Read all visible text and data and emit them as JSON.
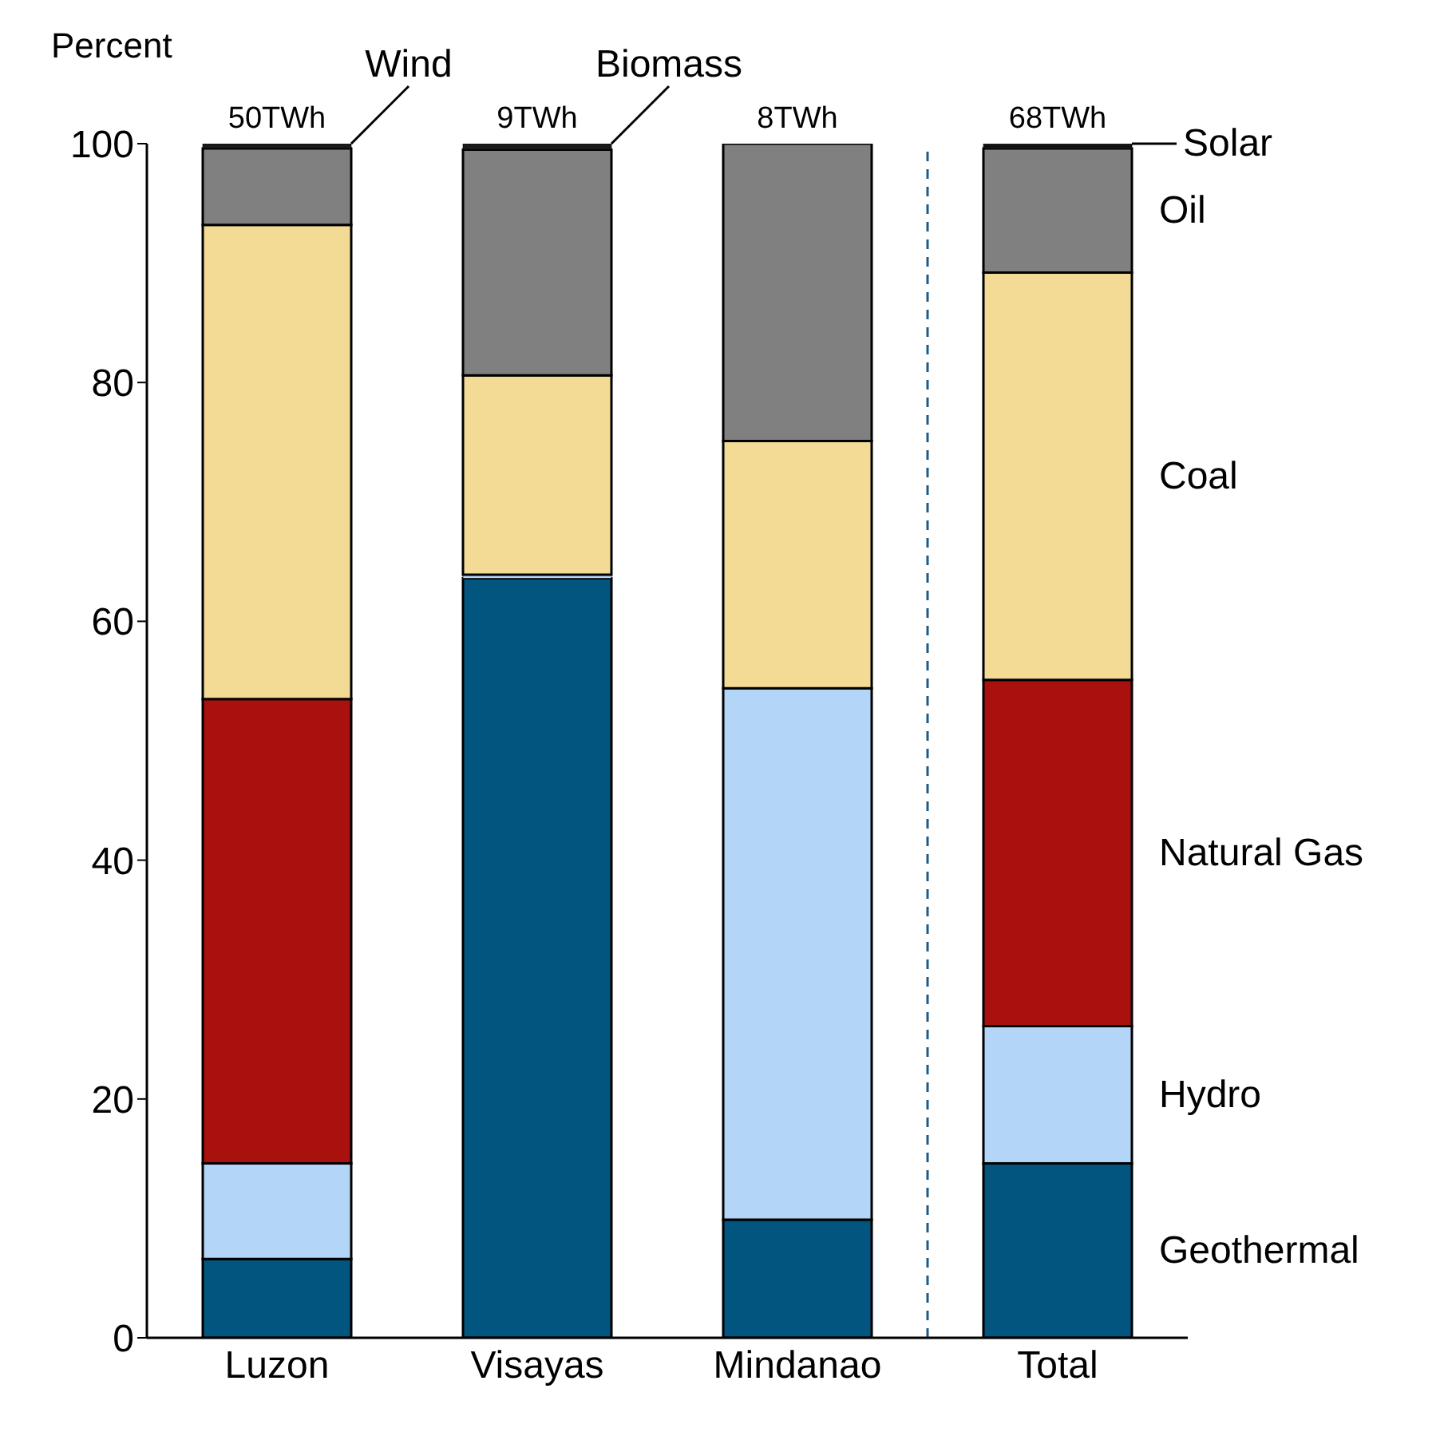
{
  "chart_data": {
    "type": "bar",
    "stacked": true,
    "ylabel": "Percent",
    "categories": [
      "Luzon",
      "Visayas",
      "Mindanao",
      "Total"
    ],
    "series": [
      {
        "name": "Geothermal",
        "color": "#02557f",
        "values": [
          6.6,
          63.6,
          9.9,
          14.6
        ]
      },
      {
        "name": "Hydro",
        "color": "#b3d5f8",
        "values": [
          8.0,
          0.3,
          44.5,
          11.5
        ]
      },
      {
        "name": "Natural Gas",
        "color": "#a8110e",
        "values": [
          38.9,
          0,
          0,
          29.0
        ]
      },
      {
        "name": "Coal",
        "color": "#f3db95",
        "values": [
          39.7,
          16.7,
          20.7,
          34.1
        ]
      },
      {
        "name": "Oil",
        "color": "#808080",
        "values": [
          6.4,
          18.9,
          24.9,
          10.4
        ]
      },
      {
        "name": "Biomass",
        "color": "#1a1a1a",
        "values": [
          null,
          0.5,
          null,
          0.2
        ]
      },
      {
        "name": "Wind",
        "color": "#1a1a1a",
        "values": [
          0.4,
          null,
          null,
          null
        ]
      },
      {
        "name": "Solar",
        "color": "#1a1a1a",
        "values": [
          null,
          null,
          null,
          0.2
        ]
      }
    ],
    "annotations": [
      {
        "text": "50TWh",
        "x": "Luzon",
        "y": 100
      },
      {
        "text": "9TWh",
        "x": "Visayas",
        "y": 100
      },
      {
        "text": "8TWh",
        "x": "Mindanao",
        "y": 100
      },
      {
        "text": "68TWh",
        "x": "Total",
        "y": 100
      }
    ],
    "ref_lines": [
      {
        "axis": "x",
        "value": "Total",
        "color": "#1f5a86",
        "line_style": "dashed"
      }
    ],
    "ylim": [
      0,
      100
    ],
    "yticks": [
      0,
      20,
      40,
      60,
      80,
      100
    ],
    "grid": false,
    "legend": "right"
  }
}
